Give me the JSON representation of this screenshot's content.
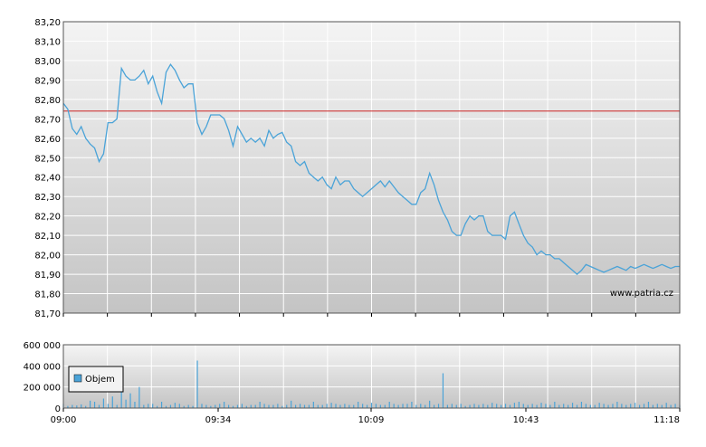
{
  "chart_data": [
    {
      "type": "line",
      "title": "",
      "y_ticks": [
        "83,20",
        "83,10",
        "83,00",
        "82,90",
        "82,80",
        "82,70",
        "82,60",
        "82,50",
        "82,40",
        "82,30",
        "82,20",
        "82,10",
        "82,00",
        "81,90",
        "81,80",
        "81,70"
      ],
      "ylim": [
        81.7,
        83.2
      ],
      "reference_line": 82.74,
      "watermark": "www.patria.cz",
      "grid": true,
      "colors": {
        "line": "#4aa3d8",
        "reference": "#cc2222"
      },
      "series": [
        {
          "minutes_from_0900": [
            0,
            1,
            2,
            3,
            4,
            5,
            6,
            7,
            8,
            9,
            10,
            11,
            12,
            13,
            14,
            15,
            16,
            17,
            18,
            19,
            20,
            21,
            22,
            23,
            24,
            25,
            26,
            27,
            28,
            29,
            30,
            31,
            32,
            33,
            34,
            35,
            36,
            37,
            38,
            39,
            40,
            41,
            42,
            43,
            44,
            45,
            46,
            47,
            48,
            49,
            50,
            51,
            52,
            53,
            54,
            55,
            56,
            57,
            58,
            59,
            60,
            61,
            62,
            63,
            64,
            65,
            66,
            67,
            68,
            69,
            70,
            71,
            72,
            73,
            74,
            75,
            76,
            77,
            78,
            79,
            80,
            81,
            82,
            83,
            84,
            85,
            86,
            87,
            88,
            89,
            90,
            91,
            92,
            93,
            94,
            95,
            96,
            97,
            98,
            99,
            100,
            101,
            102,
            103,
            104,
            105,
            106,
            107,
            108,
            109,
            110,
            111,
            112,
            113,
            114,
            115,
            116,
            117,
            118,
            119,
            120,
            121,
            122,
            123,
            124,
            125,
            126,
            127,
            128,
            129,
            130,
            131,
            132,
            133,
            134,
            135,
            136,
            137,
            138
          ],
          "values": [
            82.78,
            82.75,
            82.65,
            82.62,
            82.66,
            82.6,
            82.57,
            82.55,
            82.48,
            82.52,
            82.68,
            82.68,
            82.7,
            82.96,
            82.92,
            82.9,
            82.9,
            82.92,
            82.95,
            82.88,
            82.92,
            82.84,
            82.78,
            82.94,
            82.98,
            82.95,
            82.9,
            82.86,
            82.88,
            82.88,
            82.68,
            82.62,
            82.66,
            82.72,
            82.72,
            82.72,
            82.7,
            82.64,
            82.56,
            82.66,
            82.62,
            82.58,
            82.6,
            82.58,
            82.6,
            82.56,
            82.64,
            82.6,
            82.62,
            82.63,
            82.58,
            82.56,
            82.48,
            82.46,
            82.48,
            82.42,
            82.4,
            82.38,
            82.4,
            82.36,
            82.34,
            82.4,
            82.36,
            82.38,
            82.38,
            82.34,
            82.32,
            82.3,
            82.32,
            82.34,
            82.36,
            82.38,
            82.35,
            82.38,
            82.35,
            82.32,
            82.3,
            82.28,
            82.26,
            82.26,
            82.32,
            82.34,
            82.42,
            82.36,
            82.28,
            82.22,
            82.18,
            82.12,
            82.1,
            82.1,
            82.16,
            82.2,
            82.18,
            82.2,
            82.2,
            82.12,
            82.1,
            82.1,
            82.1,
            82.08,
            82.2,
            82.22,
            82.16,
            82.1,
            82.06,
            82.04,
            82.0,
            82.02,
            82.0,
            82.0,
            81.98,
            81.98,
            81.96,
            81.94,
            81.92,
            81.9,
            81.92,
            81.95,
            81.94,
            81.93,
            81.92,
            81.91,
            81.92,
            81.93,
            81.94,
            81.93,
            81.92,
            81.94,
            81.93,
            81.94,
            81.95,
            81.94,
            81.93,
            81.94,
            81.95,
            81.94,
            81.93,
            81.94,
            81.94
          ]
        }
      ]
    },
    {
      "type": "bar",
      "title": "",
      "x_ticks": [
        "09:00",
        "09:34",
        "10:09",
        "10:43",
        "11:18"
      ],
      "y_ticks": [
        "600 000",
        "400 000",
        "200 000",
        "0"
      ],
      "ylim": [
        0,
        600000
      ],
      "legend": {
        "position": "left",
        "label": "Objem"
      },
      "grid": true,
      "colors": {
        "bars": "#4aa3d8"
      },
      "series": [
        {
          "name": "Objem",
          "values": [
            40000,
            20000,
            30000,
            25000,
            35000,
            20000,
            70000,
            60000,
            30000,
            90000,
            40000,
            110000,
            30000,
            200000,
            80000,
            140000,
            60000,
            200000,
            30000,
            40000,
            40000,
            20000,
            60000,
            20000,
            30000,
            50000,
            40000,
            20000,
            30000,
            20000,
            450000,
            40000,
            30000,
            20000,
            30000,
            40000,
            60000,
            30000,
            20000,
            30000,
            40000,
            20000,
            30000,
            30000,
            60000,
            40000,
            30000,
            30000,
            40000,
            20000,
            30000,
            70000,
            30000,
            40000,
            30000,
            30000,
            60000,
            30000,
            30000,
            40000,
            50000,
            40000,
            30000,
            40000,
            30000,
            30000,
            60000,
            40000,
            30000,
            50000,
            40000,
            30000,
            30000,
            60000,
            40000,
            30000,
            40000,
            40000,
            60000,
            30000,
            40000,
            30000,
            70000,
            30000,
            40000,
            330000,
            30000,
            40000,
            30000,
            40000,
            20000,
            30000,
            40000,
            30000,
            40000,
            30000,
            50000,
            40000,
            30000,
            40000,
            30000,
            50000,
            60000,
            40000,
            30000,
            40000,
            30000,
            50000,
            40000,
            30000,
            60000,
            30000,
            40000,
            30000,
            50000,
            30000,
            60000,
            40000,
            30000,
            30000,
            50000,
            40000,
            30000,
            40000,
            60000,
            40000,
            30000,
            40000,
            50000,
            30000,
            40000,
            60000,
            30000,
            40000,
            30000,
            50000,
            30000,
            40000,
            30000
          ]
        }
      ]
    }
  ]
}
